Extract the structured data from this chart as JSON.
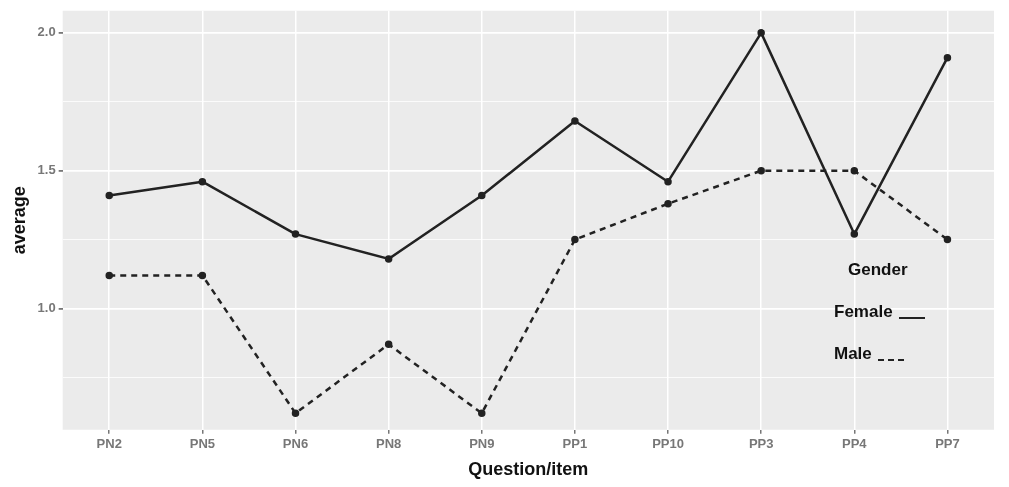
{
  "chart_data": {
    "type": "line",
    "xlabel": "Question/item",
    "ylabel": "average",
    "categories": [
      "PN2",
      "PN5",
      "PN6",
      "PN8",
      "PN9",
      "PP1",
      "PP10",
      "PP3",
      "PP4",
      "PP7"
    ],
    "series": [
      {
        "name": "Female",
        "color": "#222222",
        "line_style": "solid",
        "values": [
          1.41,
          1.46,
          1.27,
          1.18,
          1.41,
          1.68,
          1.46,
          2.0,
          1.27,
          1.91
        ]
      },
      {
        "name": "Male",
        "color": "#222222",
        "line_style": "dashed",
        "values": [
          1.12,
          1.12,
          0.62,
          0.87,
          0.62,
          1.25,
          1.38,
          1.5,
          1.5,
          1.25
        ]
      }
    ],
    "ylim": [
      0.56,
      2.08
    ],
    "yticks": [
      {
        "value": 0.75,
        "label": null
      },
      {
        "value": 1,
        "label": "1.0"
      },
      {
        "value": 1.25,
        "label": null
      },
      {
        "value": 1.5,
        "label": "1.5"
      },
      {
        "value": 1.75,
        "label": null
      },
      {
        "value": 2,
        "label": "2.0"
      }
    ],
    "grid": true,
    "legend": "bottom right",
    "legend_title": "Gender",
    "marker": "circle"
  }
}
